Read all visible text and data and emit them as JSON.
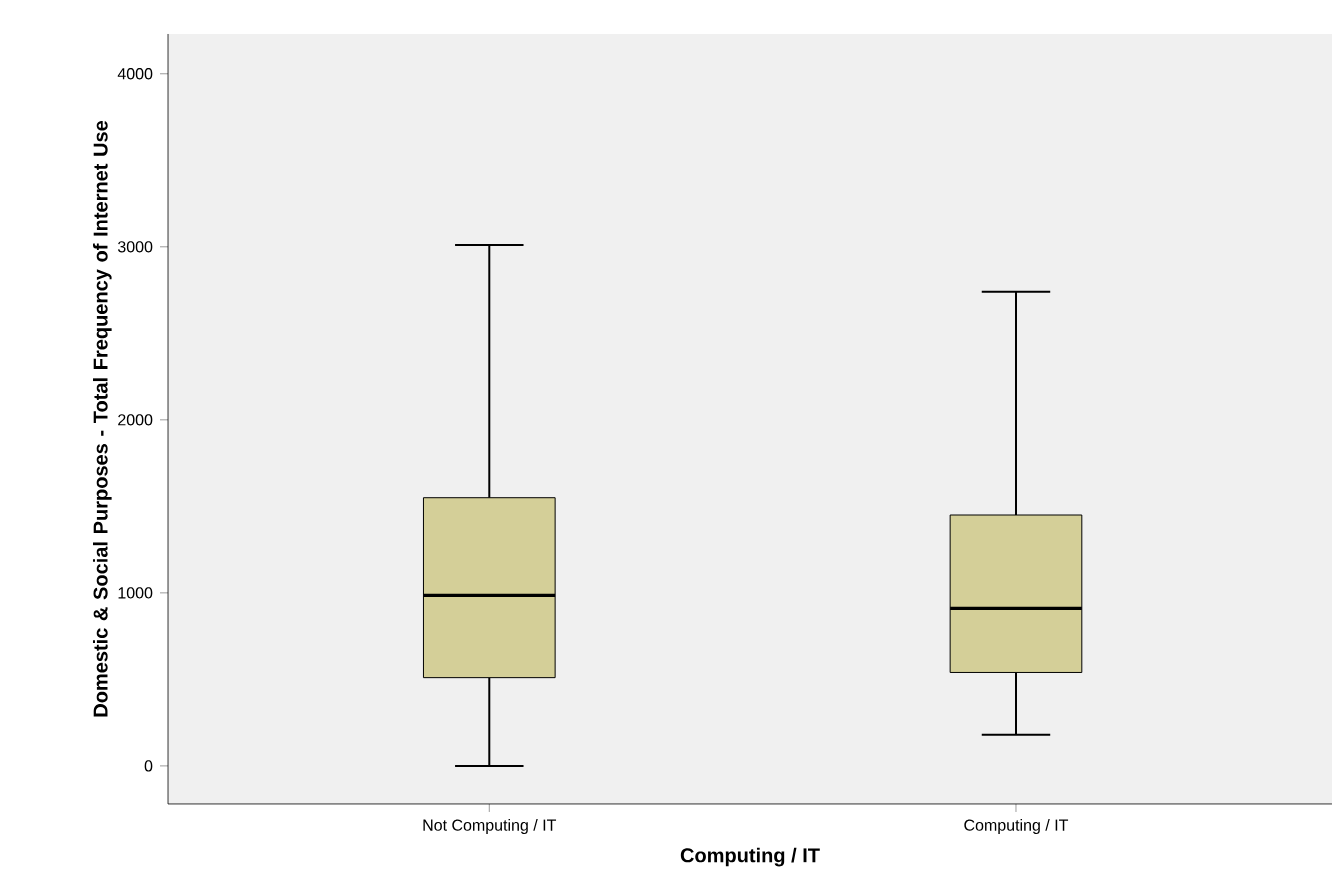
{
  "chart_data": {
    "type": "box",
    "xlabel": "Computing / IT",
    "ylabel": "Domestic & Social Purposes - Total Frequency of Internet Use",
    "categories": [
      "Not Computing / IT",
      "Computing / IT"
    ],
    "boxes": [
      {
        "low": 0,
        "q1": 510,
        "median": 985,
        "q3": 1550,
        "high": 3010
      },
      {
        "low": 180,
        "q1": 540,
        "median": 910,
        "q3": 1450,
        "high": 2740
      }
    ],
    "color": "#d4cf98",
    "ylim": [
      -220,
      4230
    ],
    "yticks": [
      0,
      1000,
      2000,
      3000,
      4000
    ],
    "grid": false,
    "legend": false
  }
}
